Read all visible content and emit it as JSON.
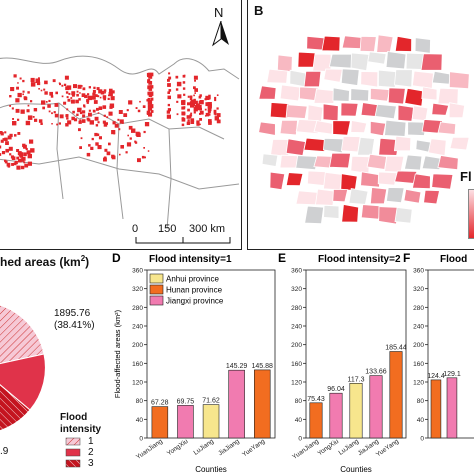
{
  "panels": {
    "a": {
      "north": "N",
      "scale": {
        "ticks": [
          "0",
          "150",
          "300 km"
        ]
      }
    },
    "b": {
      "label": "B",
      "legend_fragment": "Fl"
    },
    "c": {
      "title": "hed areas (km",
      "title_sup": "2",
      "title_close": ")",
      "slices": [
        {
          "value_label": "1895.76",
          "pct_label": "(38.41%)"
        },
        {
          "value_label": ".9"
        }
      ],
      "legend": {
        "title_line1": "Flood",
        "title_line2": "intensity",
        "items": [
          "1",
          "2",
          "3"
        ]
      }
    }
  },
  "chart_data": [
    {
      "id": "D",
      "type": "bar",
      "label": "D",
      "title": "Flood intensity=1",
      "xlabel": "Counties",
      "ylabel": "Flood-affected areas (km²)",
      "ylim": [
        0,
        360
      ],
      "yticks": [
        "0",
        "40",
        "80",
        "120",
        "160",
        "200",
        "240",
        "280",
        "320",
        "360"
      ],
      "categories": [
        "YuanJiang",
        "YongXiu",
        "LuJiang",
        "JiaJiang",
        "YueYang"
      ],
      "values": [
        67.28,
        69.75,
        71.62,
        145.29,
        145.88
      ],
      "value_labels": [
        "67.28",
        "69.75",
        "71.62",
        "145.29",
        "145.88"
      ],
      "provinces": [
        "Hunan",
        "Jiangxi",
        "Anhui",
        "Jiangxi",
        "Hunan"
      ],
      "legend": [
        {
          "key": "Anhui",
          "label": "Anhui   province",
          "color": "#f7e68d"
        },
        {
          "key": "Hunan",
          "label": "Hunan   province",
          "color": "#f26d20"
        },
        {
          "key": "Jiangxi",
          "label": "Jiangxi  province",
          "color": "#f17bb0"
        }
      ]
    },
    {
      "id": "E",
      "type": "bar",
      "label": "E",
      "title": "Flood intensity=2",
      "xlabel": "Counties",
      "ylim": [
        0,
        360
      ],
      "yticks": [
        "0",
        "40",
        "80",
        "120",
        "160",
        "200",
        "240",
        "280",
        "320",
        "360"
      ],
      "categories": [
        "YuanJiang",
        "YongXiu",
        "LuJiang",
        "JiaJiang",
        "YueYang"
      ],
      "values": [
        75.43,
        96.04,
        117.3,
        133.66,
        185.44
      ],
      "value_labels": [
        "75.43",
        "96.04",
        "117.3",
        "133.66",
        "185.44"
      ],
      "provinces": [
        "Hunan",
        "Jiangxi",
        "Anhui",
        "Jiangxi",
        "Hunan"
      ]
    },
    {
      "id": "F",
      "type": "bar",
      "label": "F",
      "title": "Flood",
      "ylim": [
        0,
        360
      ],
      "yticks": [
        "0",
        "40",
        "80",
        "120",
        "160",
        "200",
        "240",
        "280",
        "320",
        "360"
      ],
      "categories": [
        "",
        ""
      ],
      "values": [
        124.4,
        129.1
      ],
      "value_labels": [
        "124.4",
        "129.1"
      ],
      "provinces": [
        "Hunan",
        "Jiangxi"
      ]
    }
  ],
  "colors": {
    "anhui": "#f7e68d",
    "hunan": "#f26d20",
    "jiangxi": "#f17bb0",
    "flood_red": "#e3262b",
    "pie_light": "#f6c9d6",
    "pie_mid": "#e0334a",
    "pie_dark": "#b3101c"
  }
}
